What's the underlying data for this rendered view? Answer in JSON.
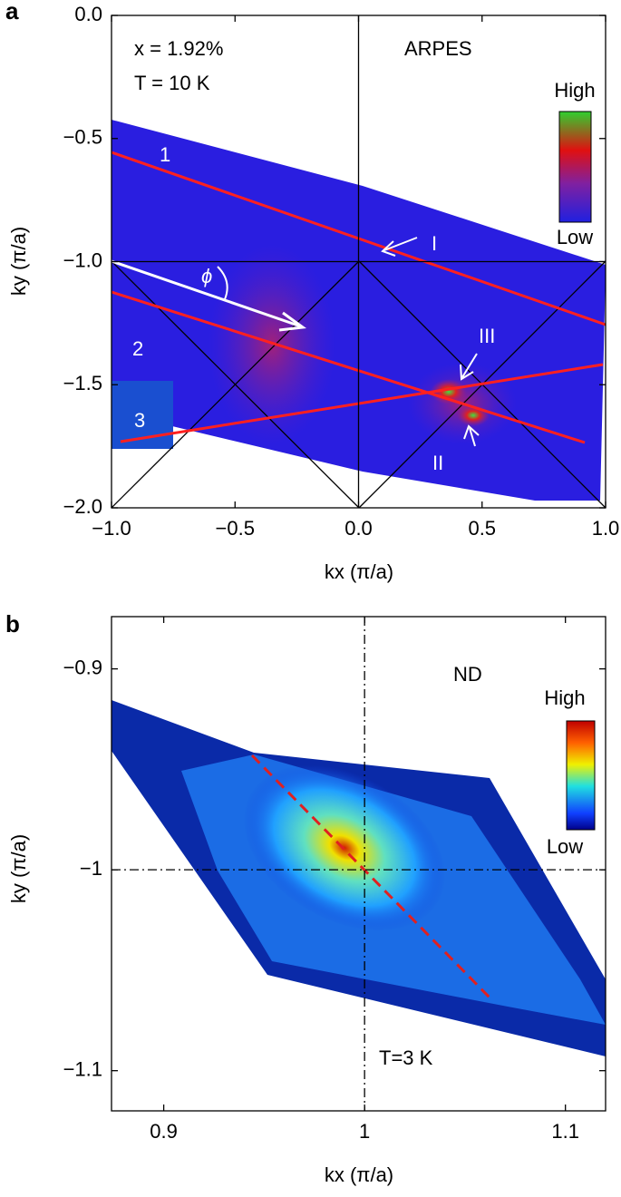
{
  "chart_data": [
    {
      "type": "heatmap",
      "panel_label": "a",
      "xlabel": "kx (π/a)",
      "ylabel": "ky (π/a)",
      "xlim": [
        -1,
        1
      ],
      "ylim": [
        -2,
        0
      ],
      "xticks": [
        {
          "value": -1,
          "label": "−1.0"
        },
        {
          "value": -0.5,
          "label": "−0.5"
        },
        {
          "value": 0,
          "label": "0.0"
        },
        {
          "value": 0.5,
          "label": "0.5"
        },
        {
          "value": 1,
          "label": "1.0"
        }
      ],
      "yticks": [
        {
          "value": 0,
          "label": "0.0"
        },
        {
          "value": -0.5,
          "label": "−0.5"
        },
        {
          "value": -1,
          "label": "−1.0"
        },
        {
          "value": -1.5,
          "label": "−1.5"
        },
        {
          "value": -2,
          "label": "−2.0"
        }
      ],
      "reference_lines": {
        "x": [
          0
        ],
        "y": [
          -1
        ],
        "style": "solid"
      },
      "annotations": [
        "x = 1.92%",
        "T = 10 K",
        "ARPES",
        "1",
        "2",
        "3",
        "I",
        "II",
        "III",
        "ϕ"
      ],
      "colorbar": {
        "high": "High",
        "low": "Low"
      }
    },
    {
      "type": "heatmap",
      "panel_label": "b",
      "xlabel": "kx (π/a)",
      "ylabel": "ky (π/a)",
      "xlim": [
        0.874,
        1.12
      ],
      "ylim": [
        -1.12,
        -0.874
      ],
      "xticks": [
        0.9,
        1,
        1.1
      ],
      "yticks": [
        {
          "value": -0.9,
          "label": "−0.9"
        },
        {
          "value": -1,
          "label": "−1"
        },
        {
          "value": -1.1,
          "label": "−1.1"
        }
      ],
      "reference_lines": {
        "x": [
          1
        ],
        "y": [
          -1
        ],
        "style": "dashdot"
      },
      "annotations": [
        "ND",
        "T=3 K"
      ],
      "colorbar": {
        "high": "High",
        "low": "Low"
      }
    }
  ]
}
